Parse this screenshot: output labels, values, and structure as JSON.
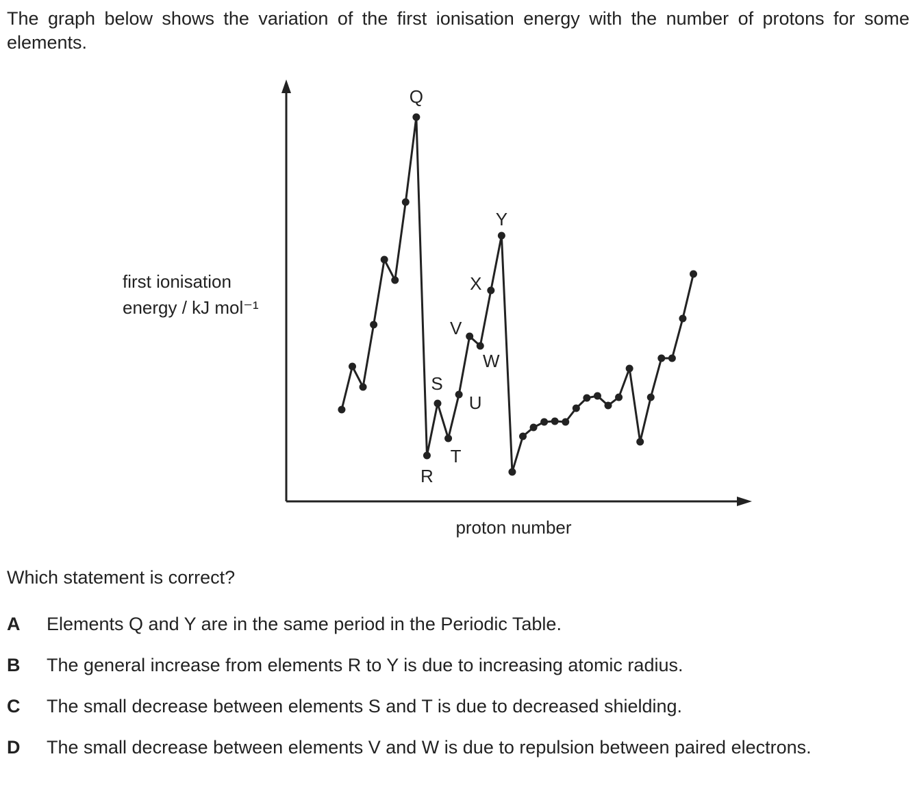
{
  "intro": "The graph below shows the variation of the first ionisation energy with the number of protons for some elements.",
  "chart_data": {
    "type": "line",
    "y_label": [
      "first ionisation",
      "energy / kJ mol⁻¹"
    ],
    "x_label": "proton number",
    "x": [
      3,
      4,
      5,
      6,
      7,
      8,
      9,
      10,
      11,
      12,
      13,
      14,
      15,
      16,
      17,
      18,
      19,
      20,
      21,
      22,
      23,
      24,
      25,
      26,
      27,
      28,
      29,
      30,
      31,
      32,
      33,
      34,
      35,
      36
    ],
    "series": [
      {
        "color": "#222222",
        "values": [
          134,
          197,
          167,
          258,
          353,
          323,
          437,
          561,
          67,
          143,
          92,
          156,
          241,
          227,
          308,
          388,
          43,
          95,
          108,
          116,
          117,
          116,
          136,
          151,
          154,
          140,
          152,
          194,
          87,
          152,
          209,
          209,
          267,
          332
        ]
      }
    ],
    "point_labels": [
      null,
      null,
      null,
      null,
      null,
      null,
      null,
      "Q",
      "R",
      "S",
      "T",
      "U",
      "V",
      "W",
      "X",
      "Y",
      null,
      null,
      null,
      null,
      null,
      null,
      null,
      null,
      null,
      null,
      null,
      null,
      null,
      null,
      null,
      null,
      null,
      null
    ],
    "xlim": [
      -2.2,
      41.3
    ],
    "ylim": [
      0,
      615
    ]
  },
  "question": "Which statement is correct?",
  "options": [
    {
      "letter": "A",
      "text": "Elements Q and Y are in the same period in the Periodic Table."
    },
    {
      "letter": "B",
      "text": "The general increase from elements R to Y is due to increasing atomic radius."
    },
    {
      "letter": "C",
      "text": "The small decrease between elements S and T is due to decreased shielding."
    },
    {
      "letter": "D",
      "text": "The small decrease between elements V and W is due to repulsion between paired electrons."
    }
  ]
}
